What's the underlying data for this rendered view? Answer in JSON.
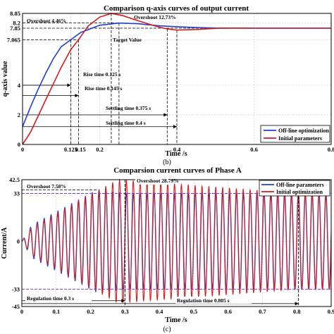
{
  "chart_data": [
    {
      "type": "line",
      "caption": "(b)",
      "title": "Comparison q-axis curves of output current",
      "xlabel": "Time /s",
      "ylabel": "q-axis value",
      "xlim": [
        0,
        0.8
      ],
      "ylim": [
        0,
        8.85
      ],
      "x_ticks": [
        "0",
        "0.125",
        "0.15",
        "0.2",
        "0.4",
        "0.6",
        "0.8"
      ],
      "y_ticks": [
        "0",
        "2",
        "4",
        "7.065",
        "7.85",
        "8.2",
        "8.85"
      ],
      "grid": true,
      "legend": "bottom-right",
      "target_value": 7.85,
      "series": [
        {
          "name": "Off-line optimization",
          "color": "#1f3fd1",
          "points": [
            [
              0,
              1.2
            ],
            [
              0.02,
              2.5
            ],
            [
              0.04,
              3.7
            ],
            [
              0.06,
              4.8
            ],
            [
              0.08,
              5.8
            ],
            [
              0.1,
              6.6
            ],
            [
              0.125,
              7.065
            ],
            [
              0.15,
              7.55
            ],
            [
              0.2,
              8.05
            ],
            [
              0.25,
              8.2
            ],
            [
              0.3,
              8.15
            ],
            [
              0.35,
              8.02
            ],
            [
              0.4,
              7.95
            ],
            [
              0.45,
              7.9
            ],
            [
              0.5,
              7.86
            ],
            [
              0.6,
              7.85
            ],
            [
              0.7,
              7.85
            ],
            [
              0.8,
              7.85
            ]
          ]
        },
        {
          "name": "Initial parameters",
          "color": "#d41c1c",
          "points": [
            [
              0,
              0
            ],
            [
              0.02,
              0.8
            ],
            [
              0.04,
              1.9
            ],
            [
              0.06,
              3.0
            ],
            [
              0.08,
              4.1
            ],
            [
              0.1,
              5.2
            ],
            [
              0.125,
              6.4
            ],
            [
              0.145,
              7.065
            ],
            [
              0.17,
              8.0
            ],
            [
              0.2,
              8.6
            ],
            [
              0.23,
              8.85
            ],
            [
              0.26,
              8.7
            ],
            [
              0.3,
              8.35
            ],
            [
              0.35,
              7.95
            ],
            [
              0.375,
              7.8
            ],
            [
              0.4,
              7.72
            ],
            [
              0.45,
              7.76
            ],
            [
              0.5,
              7.84
            ],
            [
              0.55,
              7.86
            ],
            [
              0.6,
              7.85
            ],
            [
              0.7,
              7.85
            ],
            [
              0.8,
              7.85
            ]
          ]
        }
      ],
      "annotations": {
        "overshoot_blue": "Overshoot 4.46%",
        "overshoot_red": "Overshoot 12.73%",
        "target": "Target Value",
        "rise_blue": "Rise time 0.125 s",
        "rise_red": "Rise time 0.145 s",
        "settle_blue": "Settling time 0.375 s",
        "settle_red": "Settling time 0.4 s"
      }
    },
    {
      "type": "line",
      "caption": "(c)",
      "title": "Comparsion current curves of Phase A",
      "xlabel": "Time /s",
      "ylabel": "Current/A",
      "xlim": [
        0,
        0.9
      ],
      "ylim": [
        -45,
        42.5
      ],
      "x_ticks": [
        "0",
        "0.1",
        "0.2",
        "0.3",
        "0.4",
        "0.5",
        "0.6",
        "0.7",
        "0.8",
        "0.9"
      ],
      "y_ticks": [
        "-45",
        "-33",
        "0",
        "33",
        "42.5"
      ],
      "grid": true,
      "legend": "top-right",
      "reference_levels": [
        33,
        -33
      ],
      "frequency_hz": 50,
      "series": [
        {
          "name": "Off-line parameters",
          "color": "#1f3fd1",
          "peak_amplitude": 35.5,
          "steady_amplitude": 33,
          "regulation_time": 0.3
        },
        {
          "name": "Initial optimization",
          "color": "#d41c1c",
          "peak_amplitude": 42.5,
          "steady_amplitude": 33,
          "regulation_time": 0.805
        }
      ],
      "annotations": {
        "overshoot_blue": "Overshoot 7.58%",
        "overshoot_red": "Overshoot 28.79%",
        "reg_blue": "Regulation time 0.3 s",
        "reg_red": "Regulation time 0.805 s"
      }
    }
  ]
}
